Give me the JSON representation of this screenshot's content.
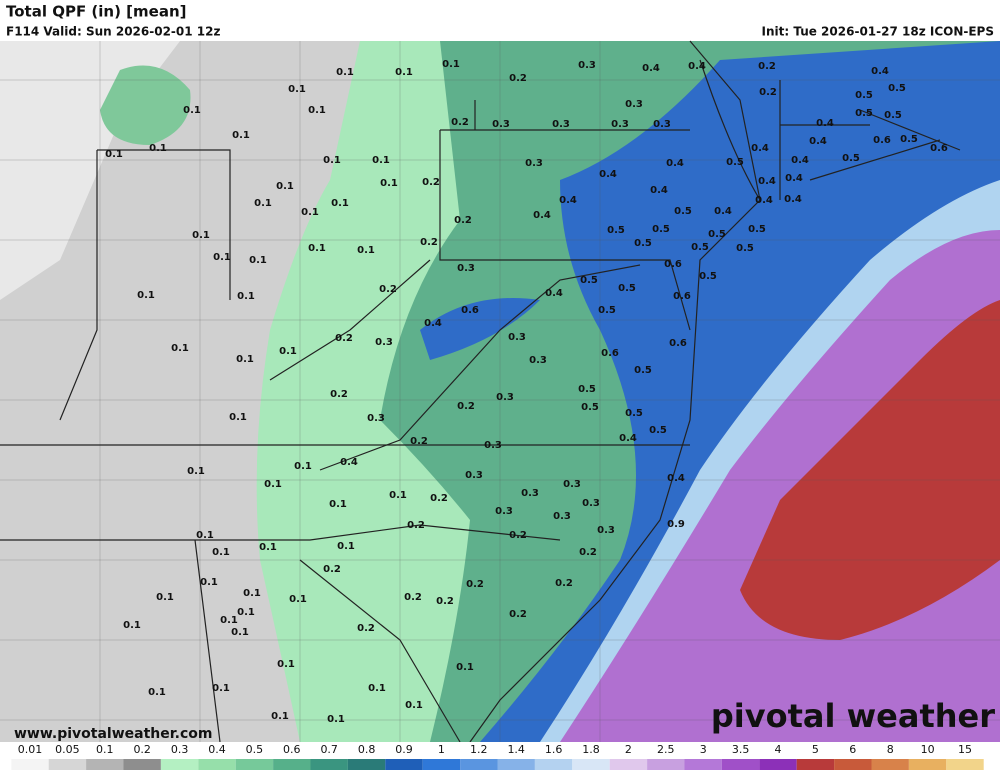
{
  "header": {
    "title": "Total QPF (in) [mean]",
    "valid": "F114 Valid: Sun 2026-02-01 12z",
    "init": "Init: Tue 2026-01-27 18z ICON-EPS"
  },
  "footer": {
    "url": "www.pivotalweather.com",
    "logo": "pivotal weather"
  },
  "contour_labels": [
    0.1,
    0.1,
    0.1,
    0.2,
    0.3,
    0.4,
    0.4,
    0.2,
    0.4,
    0.1,
    0.2,
    0.5,
    0.5,
    0.1,
    0.1,
    0.3,
    0.5,
    0.5,
    0.1,
    0.2,
    0.3,
    0.3,
    0.3,
    0.3,
    0.4,
    0.1,
    0.1,
    0.4,
    0.6,
    0.5,
    0.1,
    0.1,
    0.3,
    0.4,
    0.5,
    0.4,
    0.4,
    0.5,
    0.6,
    0.1,
    0.1,
    0.2,
    0.4,
    0.4,
    0.4,
    0.4,
    0.1,
    0.1,
    0.4,
    0.4,
    0.4,
    0.1,
    0.2,
    0.4,
    0.5,
    0.4,
    0.1,
    0.1,
    0.1,
    0.2,
    0.5,
    0.5,
    0.5,
    0.5,
    0.1,
    0.1,
    0.5,
    0.5,
    0.5,
    0.1,
    0.1,
    0.2,
    0.3,
    0.6,
    0.5,
    0.4,
    0.5,
    0.5,
    0.6,
    0.2,
    0.4,
    0.6,
    0.5,
    0.1,
    0.1,
    0.3,
    0.3,
    0.6,
    0.6,
    0.1,
    0.3,
    0.5,
    0.2,
    0.5,
    0.3,
    0.1,
    0.3,
    0.2,
    0.5,
    0.5,
    0.5,
    0.2,
    0.3,
    0.4,
    0.4,
    0.1,
    0.1,
    0.3,
    0.3,
    0.4,
    0.1,
    0.1,
    0.2,
    0.3,
    0.1,
    0.3,
    0.3,
    0.3,
    0.2,
    0.3,
    0.9,
    0.2,
    0.1,
    0.1,
    0.1,
    0.1,
    0.2,
    0.2,
    0.1,
    0.1,
    0.2,
    0.2,
    0.1,
    0.1,
    0.2,
    0.2,
    0.1,
    0.1,
    0.2,
    0.1,
    0.2,
    0.1,
    0.1,
    0.1,
    0.1,
    0.1,
    0.1,
    0.1,
    0.1,
    0.1
  ],
  "colorbar": {
    "ticks": [
      0.01,
      0.05,
      0.1,
      0.2,
      0.3,
      0.4,
      0.5,
      0.6,
      0.7,
      0.8,
      0.9,
      1,
      1.2,
      1.4,
      1.6,
      1.8,
      2,
      2.5,
      3,
      3.5,
      4,
      5,
      6,
      8,
      10,
      15
    ],
    "colors": [
      "#f4f4f4",
      "#d6d6d6",
      "#b4b4b4",
      "#8e8e8e",
      "#b4f0c2",
      "#96dfaa",
      "#76c99a",
      "#56b08a",
      "#3a9580",
      "#2a7b78",
      "#1f5fb8",
      "#2f78d8",
      "#5a95e0",
      "#86b2e8",
      "#b4d2f0",
      "#d8e6f6",
      "#e0c8ec",
      "#c8a0e0",
      "#b478d8",
      "#a050c8",
      "#8c30b8",
      "#b83a3a",
      "#c85a3a",
      "#d8824a",
      "#e8b060",
      "#f2d48a"
    ]
  }
}
